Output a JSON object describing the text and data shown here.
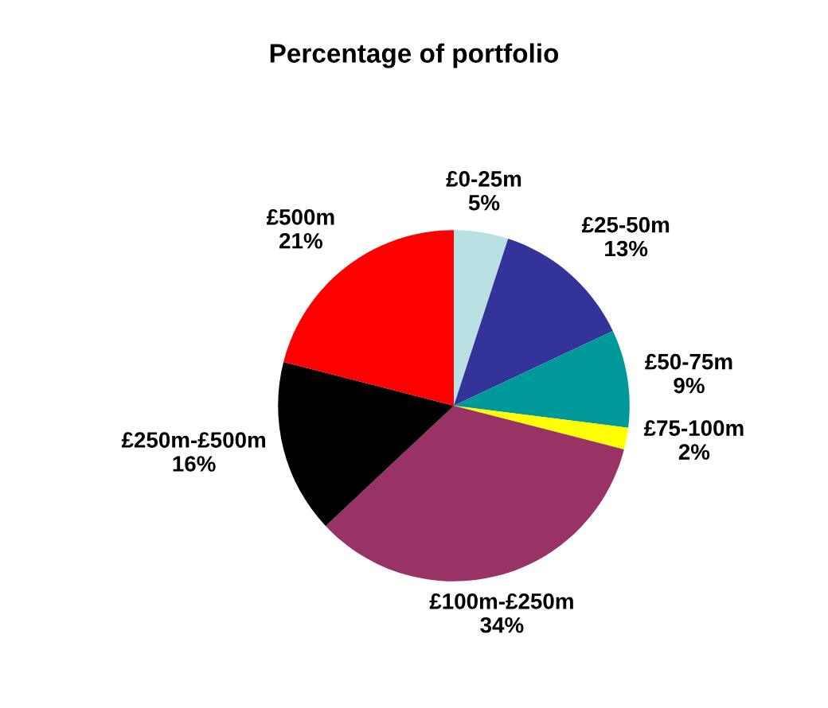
{
  "chart_data": {
    "type": "pie",
    "title": "Percentage of portfolio",
    "categories": [
      "£0-25m",
      "£25-50m",
      "£50-75m",
      "£75-100m",
      "£100m-£250m",
      "£250m-£500m",
      "£500m"
    ],
    "values": [
      5,
      13,
      9,
      2,
      34,
      16,
      21
    ],
    "value_labels": [
      "5%",
      "13%",
      "9%",
      "2%",
      "34%",
      "16%",
      "21%"
    ],
    "colors": [
      "#b9e0e3",
      "#333399",
      "#009999",
      "#ffff00",
      "#993366",
      "#000000",
      "#ff0000"
    ]
  }
}
